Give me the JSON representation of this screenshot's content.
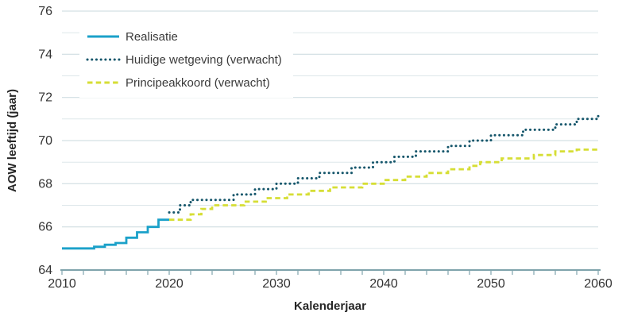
{
  "chart_data": {
    "type": "line",
    "step": true,
    "title": "",
    "xlabel": "Kalenderjaar",
    "ylabel": "AOW leeftijd (jaar)",
    "xlim": [
      2010,
      2060
    ],
    "ylim": [
      64,
      76
    ],
    "x_tick_label_step": 10,
    "x_tick_minor_step": 2,
    "y_tick_label_step": 2,
    "y_grid_step": 1,
    "grid": "horizontal",
    "legend_position": "top-left",
    "colors": {
      "axis": "#7fa3ac",
      "grid_major": "#c9d9dd",
      "grid_minor": "#dde7ea",
      "tick_text": "#333333"
    },
    "series": [
      {
        "name": "realisatie",
        "label": "Realisatie",
        "color": "#1BA1C9",
        "style": "solid",
        "x": [
          2010,
          2011,
          2012,
          2013,
          2014,
          2015,
          2016,
          2017,
          2018,
          2019
        ],
        "values": [
          65,
          65,
          65,
          65.08,
          65.17,
          65.25,
          65.5,
          65.75,
          66,
          66.33
        ],
        "extend_to": 2020
      },
      {
        "name": "huidige-wetgeving",
        "label": "Huidige wetgeving (verwacht)",
        "color": "#15566B",
        "style": "dotted",
        "x": [
          2020,
          2021,
          2022,
          2023,
          2024,
          2025,
          2026,
          2027,
          2028,
          2029,
          2030,
          2031,
          2032,
          2033,
          2034,
          2035,
          2036,
          2037,
          2038,
          2039,
          2040,
          2041,
          2042,
          2043,
          2044,
          2045,
          2046,
          2047,
          2048,
          2049,
          2050,
          2051,
          2052,
          2053,
          2054,
          2055,
          2056,
          2057,
          2058,
          2059,
          2060
        ],
        "values": [
          66.67,
          67,
          67.25,
          67.25,
          67.25,
          67.25,
          67.5,
          67.5,
          67.75,
          67.75,
          68,
          68,
          68.25,
          68.25,
          68.5,
          68.5,
          68.5,
          68.75,
          68.75,
          69,
          69,
          69.25,
          69.25,
          69.5,
          69.5,
          69.5,
          69.75,
          69.75,
          70,
          70,
          70.25,
          70.25,
          70.25,
          70.5,
          70.5,
          70.5,
          70.75,
          70.75,
          71,
          71,
          71.25
        ]
      },
      {
        "name": "principeakkoord",
        "label": "Principeakkoord (verwacht)",
        "color": "#D6DE35",
        "style": "dashed",
        "x": [
          2020,
          2021,
          2022,
          2023,
          2024,
          2025,
          2026,
          2027,
          2028,
          2029,
          2030,
          2031,
          2032,
          2033,
          2034,
          2035,
          2036,
          2037,
          2038,
          2039,
          2040,
          2041,
          2042,
          2043,
          2044,
          2045,
          2046,
          2047,
          2048,
          2049,
          2050,
          2051,
          2052,
          2053,
          2054,
          2055,
          2056,
          2057,
          2058,
          2059,
          2060
        ],
        "values": [
          66.33,
          66.33,
          66.58,
          66.83,
          67,
          67,
          67,
          67.17,
          67.17,
          67.33,
          67.33,
          67.5,
          67.5,
          67.67,
          67.67,
          67.83,
          67.83,
          67.83,
          68,
          68,
          68.17,
          68.17,
          68.33,
          68.33,
          68.5,
          68.5,
          68.67,
          68.67,
          68.83,
          69,
          69,
          69.17,
          69.17,
          69.17,
          69.33,
          69.33,
          69.5,
          69.5,
          69.58,
          69.58,
          69.58
        ]
      }
    ]
  }
}
